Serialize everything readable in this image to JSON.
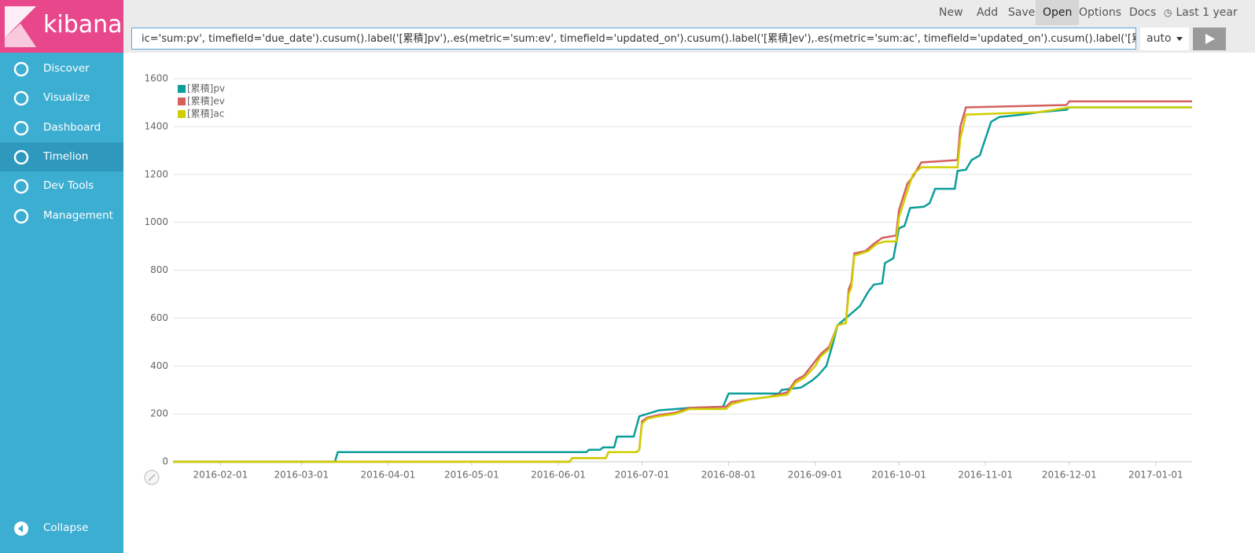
{
  "sidebar": {
    "logo": "kibana",
    "items": [
      "Discover",
      "Visualize",
      "Dashboard",
      "Timelion",
      "Dev Tools",
      "Management"
    ],
    "active": "Timelion",
    "collapse": "Collapse"
  },
  "top_menu": {
    "items": [
      "New",
      "Add",
      "Save",
      "Open",
      "Options",
      "Docs"
    ],
    "active": "Open",
    "time": "Last 1 year"
  },
  "expression": "ic='sum:pv', timefield='due_date').cusum().label('[累積]pv'),.es(metric='sum:ev', timefield='updated_on').cusum().label('[累積]ev'),.es(metric='sum:ac', timefield='updated_on').cusum().label('[累積]ac')",
  "interval": "auto",
  "chart_data": {
    "type": "line",
    "grid": true,
    "legend": "top-left",
    "xlim": [
      "2016-01-15",
      "2017-01-14"
    ],
    "xticks": [
      "2016-02-01",
      "2016-03-01",
      "2016-04-01",
      "2016-05-01",
      "2016-06-01",
      "2016-07-01",
      "2016-08-01",
      "2016-09-01",
      "2016-10-01",
      "2016-11-01",
      "2016-12-01",
      "2017-01-01"
    ],
    "ylim": [
      0,
      1600
    ],
    "yticks": [
      0,
      200,
      400,
      600,
      800,
      1000,
      1200,
      1400,
      1600
    ],
    "series": [
      {
        "name": "[累積]pv",
        "color": "#0a9e9a",
        "x": [
          "2016-01-15",
          "2016-03-13",
          "2016-03-14",
          "2016-06-11",
          "2016-06-12",
          "2016-06-16",
          "2016-06-17",
          "2016-06-21",
          "2016-06-22",
          "2016-06-28",
          "2016-06-30",
          "2016-07-03",
          "2016-07-07",
          "2016-07-13",
          "2016-07-18",
          "2016-07-30",
          "2016-08-01",
          "2016-08-19",
          "2016-08-20",
          "2016-08-27",
          "2016-08-31",
          "2016-09-02",
          "2016-09-05",
          "2016-09-07",
          "2016-09-09",
          "2016-09-11",
          "2016-09-14",
          "2016-09-17",
          "2016-09-20",
          "2016-09-22",
          "2016-09-25",
          "2016-09-26",
          "2016-09-29",
          "2016-10-01",
          "2016-10-03",
          "2016-10-05",
          "2016-10-10",
          "2016-10-12",
          "2016-10-14",
          "2016-10-21",
          "2016-10-22",
          "2016-10-25",
          "2016-10-27",
          "2016-10-30",
          "2016-11-01",
          "2016-11-03",
          "2016-11-06",
          "2016-11-14",
          "2016-11-20",
          "2016-11-30",
          "2016-12-01",
          "2017-01-14"
        ],
        "values": [
          0,
          0,
          40,
          40,
          50,
          50,
          60,
          60,
          105,
          105,
          190,
          200,
          215,
          220,
          225,
          230,
          285,
          285,
          300,
          310,
          340,
          360,
          400,
          480,
          570,
          590,
          620,
          650,
          710,
          740,
          745,
          830,
          850,
          975,
          985,
          1060,
          1065,
          1080,
          1140,
          1140,
          1215,
          1220,
          1260,
          1280,
          1350,
          1420,
          1440,
          1450,
          1460,
          1470,
          1480,
          1480
        ]
      },
      {
        "name": "[累積]ev",
        "color": "#d4605e",
        "x": [
          "2016-01-15",
          "2016-06-05",
          "2016-06-06",
          "2016-06-18",
          "2016-06-19",
          "2016-06-29",
          "2016-06-30",
          "2016-07-01",
          "2016-07-03",
          "2016-07-07",
          "2016-07-13",
          "2016-07-18",
          "2016-07-31",
          "2016-08-02",
          "2016-08-08",
          "2016-08-15",
          "2016-08-22",
          "2016-08-25",
          "2016-08-28",
          "2016-09-01",
          "2016-09-03",
          "2016-09-06",
          "2016-09-09",
          "2016-09-12",
          "2016-09-13",
          "2016-09-14",
          "2016-09-15",
          "2016-09-19",
          "2016-09-22",
          "2016-09-25",
          "2016-09-30",
          "2016-10-01",
          "2016-10-04",
          "2016-10-06",
          "2016-10-09",
          "2016-10-22",
          "2016-10-23",
          "2016-10-25",
          "2016-11-30",
          "2016-12-01",
          "2017-01-14"
        ],
        "values": [
          0,
          0,
          15,
          15,
          40,
          40,
          50,
          170,
          185,
          195,
          205,
          225,
          230,
          250,
          260,
          270,
          290,
          340,
          360,
          420,
          450,
          480,
          570,
          580,
          720,
          750,
          870,
          880,
          910,
          935,
          945,
          1050,
          1160,
          1190,
          1250,
          1260,
          1400,
          1480,
          1490,
          1505,
          1505
        ]
      },
      {
        "name": "[累積]ac",
        "color": "#cfcf00",
        "x": [
          "2016-01-15",
          "2016-06-05",
          "2016-06-06",
          "2016-06-18",
          "2016-06-19",
          "2016-06-29",
          "2016-06-30",
          "2016-07-01",
          "2016-07-03",
          "2016-07-07",
          "2016-07-13",
          "2016-07-18",
          "2016-07-31",
          "2016-08-02",
          "2016-08-08",
          "2016-08-15",
          "2016-08-22",
          "2016-08-25",
          "2016-08-28",
          "2016-09-01",
          "2016-09-03",
          "2016-09-06",
          "2016-09-09",
          "2016-09-12",
          "2016-09-13",
          "2016-09-14",
          "2016-09-15",
          "2016-09-20",
          "2016-09-23",
          "2016-09-26",
          "2016-09-30",
          "2016-10-01",
          "2016-10-04",
          "2016-10-06",
          "2016-10-09",
          "2016-10-22",
          "2016-10-23",
          "2016-10-25",
          "2016-11-20",
          "2016-12-01",
          "2017-01-14"
        ],
        "values": [
          0,
          0,
          15,
          15,
          40,
          40,
          50,
          160,
          180,
          190,
          200,
          220,
          220,
          240,
          260,
          270,
          280,
          330,
          350,
          400,
          440,
          470,
          570,
          580,
          700,
          730,
          860,
          880,
          910,
          920,
          920,
          1020,
          1130,
          1200,
          1230,
          1230,
          1350,
          1450,
          1460,
          1480,
          1480
        ]
      }
    ]
  }
}
